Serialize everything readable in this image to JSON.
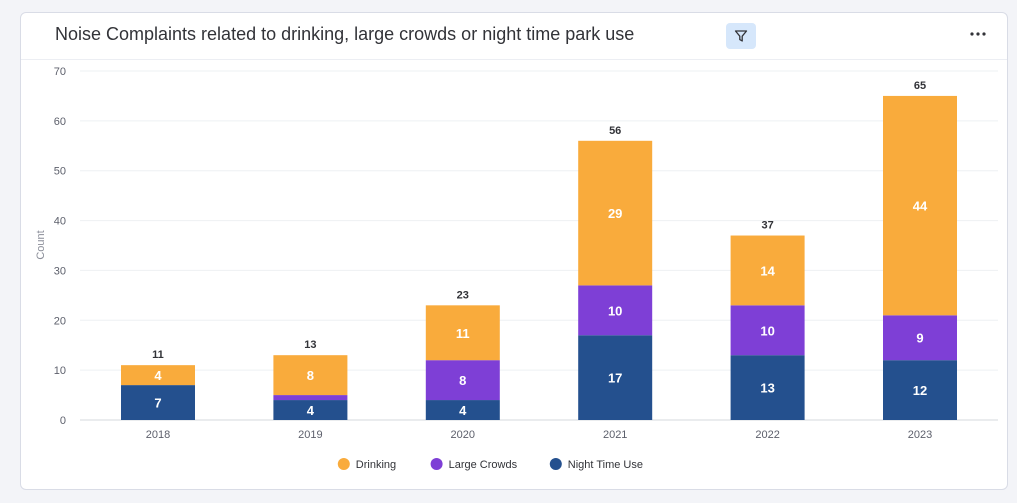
{
  "header": {
    "title": "Noise Complaints related to drinking, large crowds or night time park use",
    "filter_icon": "filter-icon",
    "more_icon": "more-horizontal-icon"
  },
  "chart_data": {
    "type": "bar",
    "stacked": true,
    "title": "Noise Complaints related to drinking, large crowds or night time park use",
    "xlabel": "",
    "ylabel": "Count",
    "ylim": [
      0,
      70
    ],
    "yticks": [
      0,
      10,
      20,
      30,
      40,
      50,
      60,
      70
    ],
    "grid": true,
    "legend": "bottom-center",
    "categories": [
      "2018",
      "2019",
      "2020",
      "2021",
      "2022",
      "2023"
    ],
    "totals": [
      11,
      13,
      23,
      56,
      37,
      65
    ],
    "series": [
      {
        "name": "Night Time Use",
        "color": "#24508e",
        "values": [
          7,
          4,
          4,
          17,
          13,
          12
        ]
      },
      {
        "name": "Large Crowds",
        "color": "#7e3fd6",
        "values": [
          0,
          1,
          8,
          10,
          10,
          9
        ]
      },
      {
        "name": "Drinking",
        "color": "#f9ab3c",
        "values": [
          4,
          8,
          11,
          29,
          14,
          44
        ]
      }
    ],
    "legend_order": [
      "Drinking",
      "Large Crowds",
      "Night Time Use"
    ]
  }
}
